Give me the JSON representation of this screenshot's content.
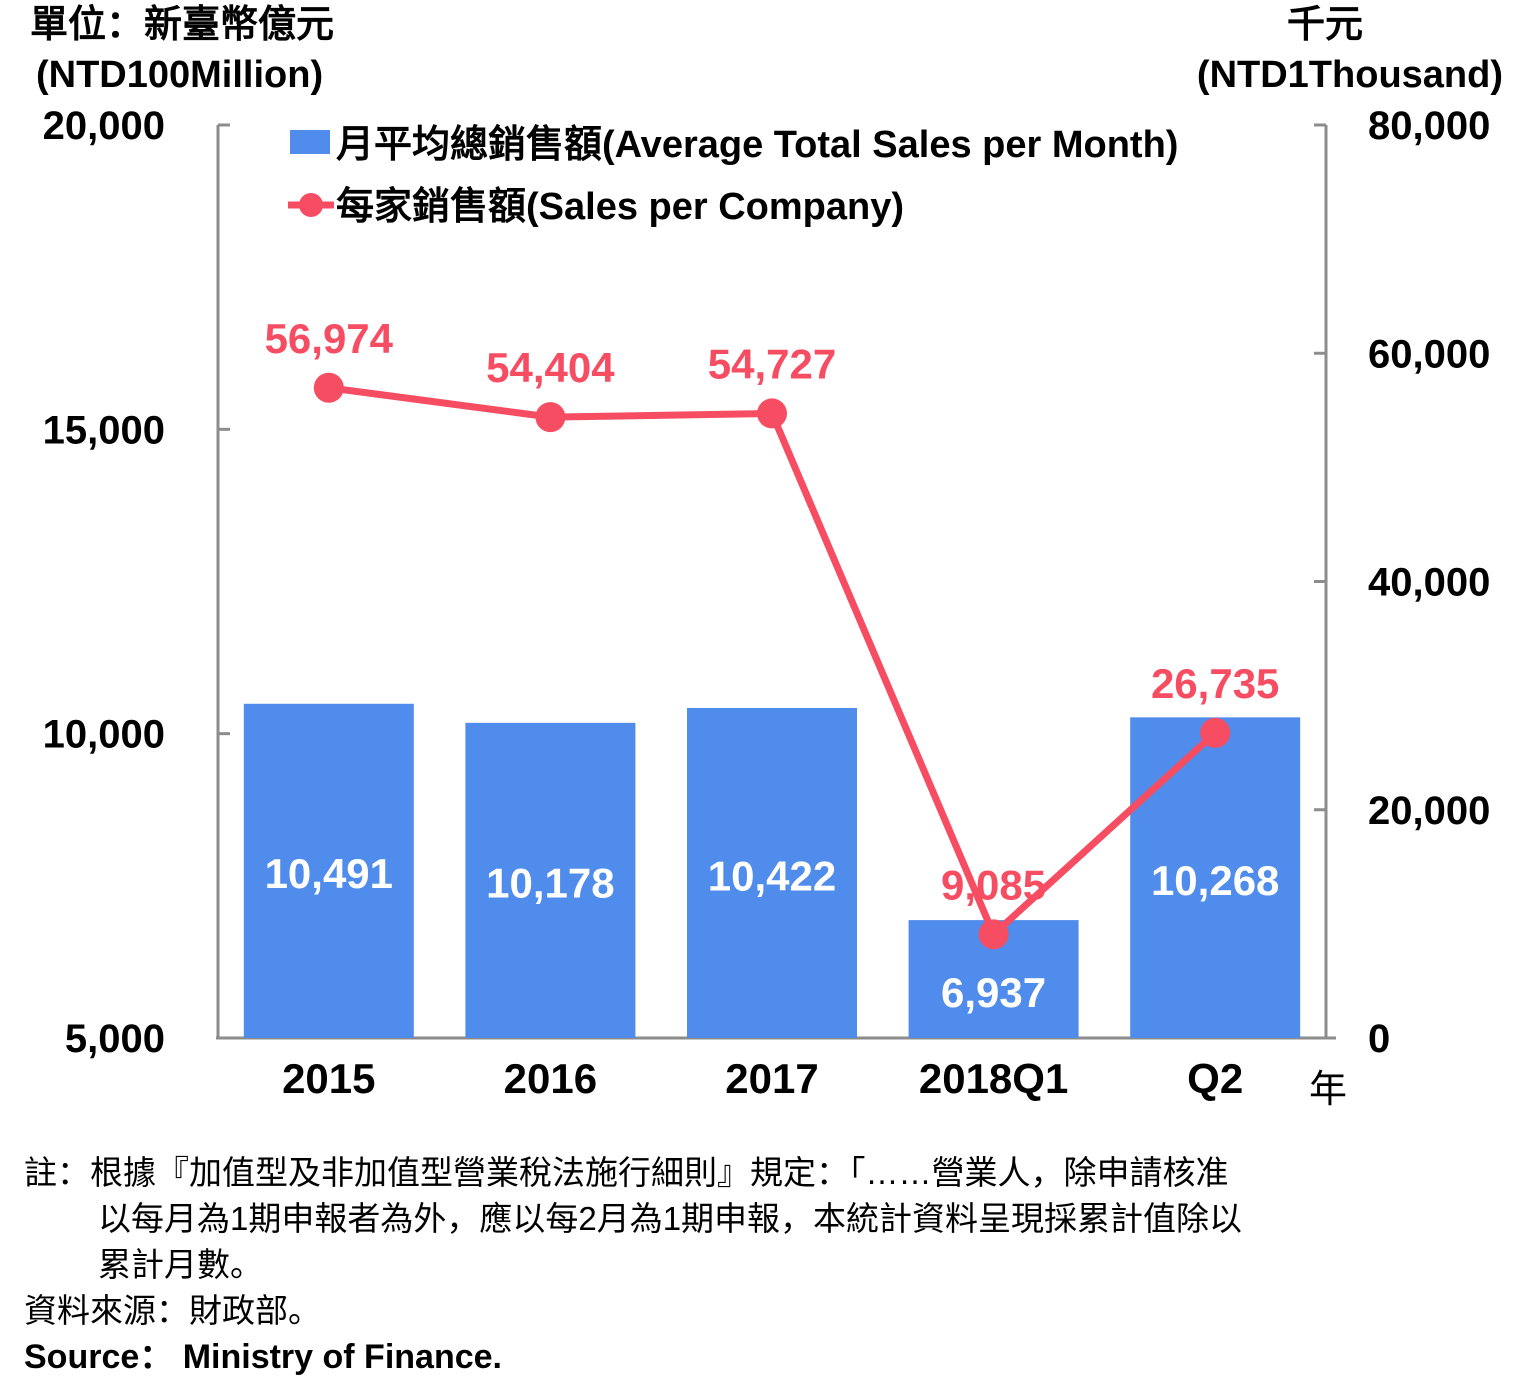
{
  "chart_data": {
    "type": "bar+line",
    "categories": [
      "2015",
      "2016",
      "2017",
      "2018Q1",
      "Q2"
    ],
    "x_unit_label": "年",
    "left_axis": {
      "unit_zh": "單位：新臺幣億元",
      "unit_en": "(NTD100Million)",
      "min": 5000,
      "max": 20000,
      "ticks": [
        5000,
        10000,
        15000,
        20000
      ],
      "tick_labels": [
        "5,000",
        "10,000",
        "15,000",
        "20,000"
      ]
    },
    "right_axis": {
      "unit_zh": "千元",
      "unit_en": "(NTD1Thousand)",
      "min": 0,
      "max": 80000,
      "ticks": [
        0,
        20000,
        40000,
        60000,
        80000
      ],
      "tick_labels": [
        "0",
        "20,000",
        "40,000",
        "60,000",
        "80,000"
      ]
    },
    "series": [
      {
        "name": "月平均總銷售額(Average Total Sales per Month)",
        "kind": "bar",
        "axis": "left",
        "color": "#4f8ceb",
        "values": [
          10491,
          10178,
          10422,
          6937,
          10268
        ],
        "labels": [
          "10,491",
          "10,178",
          "10,422",
          "6,937",
          "10,268"
        ]
      },
      {
        "name": "每家銷售額(Sales per Company)",
        "kind": "line",
        "axis": "right",
        "color": "#f64d63",
        "values": [
          56974,
          54404,
          54727,
          9085,
          26735
        ],
        "labels": [
          "56,974",
          "54,404",
          "54,727",
          "9,085",
          "26,735"
        ]
      }
    ],
    "legend_position": "top-left",
    "grid": false
  },
  "notes": {
    "line1": "註：根據『加值型及非加值型營業稅法施行細則』規定：「……營業人，除申請核准",
    "line2": "以每月為1期申報者為外，應以每2月為1期申報，本統計資料呈現採累計值除以",
    "line3": "累計月數。",
    "source_zh": "資料來源：財政部。",
    "source_en": "Source： Ministry of Finance."
  }
}
